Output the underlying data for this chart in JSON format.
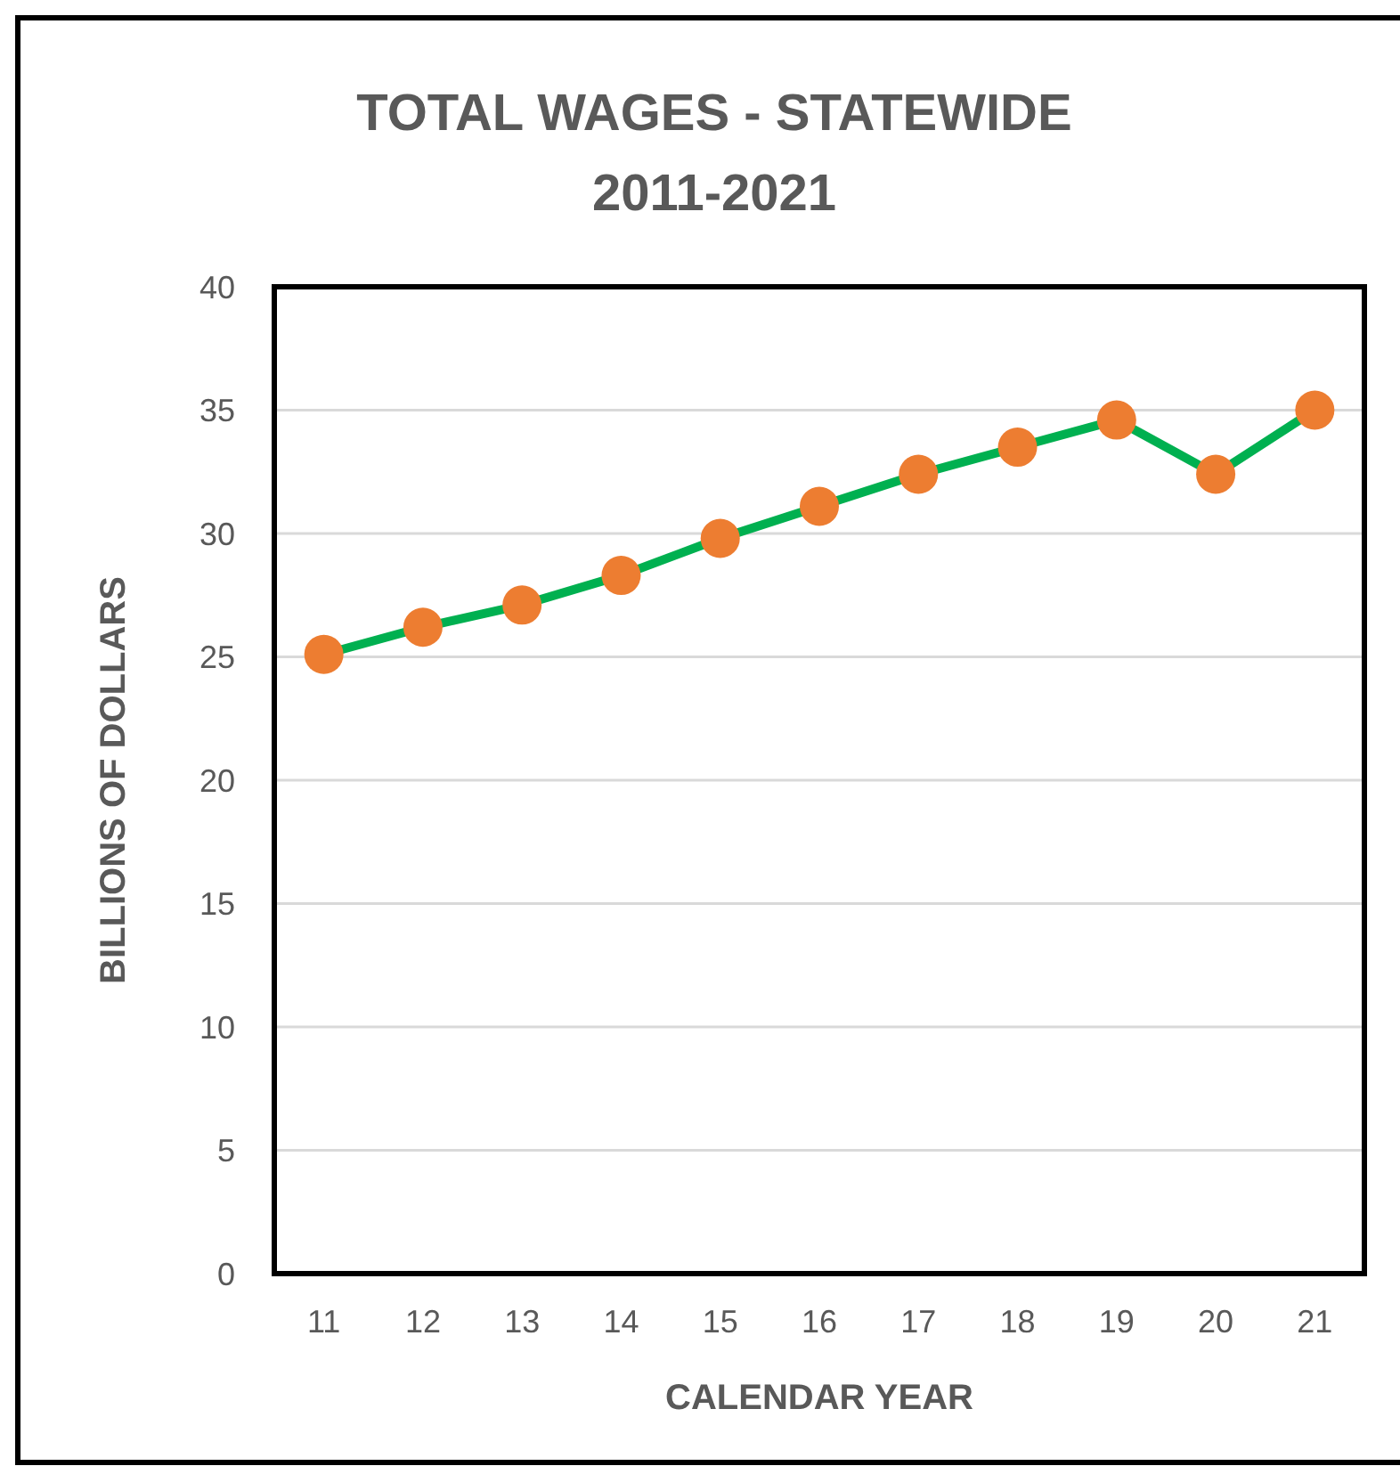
{
  "chart_data": {
    "type": "line",
    "title": "TOTAL WAGES - STATEWIDE",
    "subtitle": "2011-2021",
    "xlabel": "CALENDAR YEAR",
    "ylabel": "BILLIONS OF DOLLARS",
    "categories": [
      "11",
      "12",
      "13",
      "14",
      "15",
      "16",
      "17",
      "18",
      "19",
      "20",
      "21"
    ],
    "series": [
      {
        "color": "#00b050",
        "colors": [
          "#ed7d31",
          "#ed7d31",
          "#ed7d31",
          "#ed7d31",
          "#ed7d31",
          "#ed7d31",
          "#ed7d31",
          "#ed7d31",
          "#ed7d31",
          "#ed7d31",
          "#ed7d31"
        ],
        "values": [
          25.1,
          26.2,
          27.1,
          28.3,
          29.8,
          31.1,
          32.4,
          33.5,
          34.6,
          32.4,
          35.0
        ]
      }
    ],
    "ylim": [
      0,
      40
    ],
    "yticks": [
      0,
      5,
      10,
      15,
      20,
      25,
      30,
      35,
      40
    ],
    "grid": "y",
    "marker": "circle",
    "line_style": "solid"
  }
}
